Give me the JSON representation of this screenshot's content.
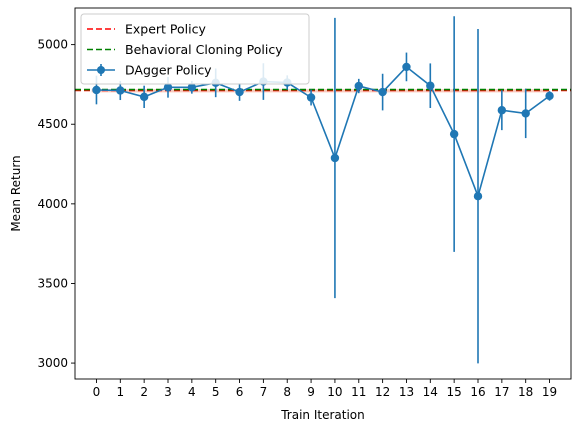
{
  "chart_data": {
    "type": "line",
    "title": "",
    "xlabel": "Train Iteration",
    "ylabel": "Mean Return",
    "xlim": [
      -0.9,
      19.9
    ],
    "ylim": [
      2900,
      5230
    ],
    "x_ticks": [
      0,
      1,
      2,
      3,
      4,
      5,
      6,
      7,
      8,
      9,
      10,
      11,
      12,
      13,
      14,
      15,
      16,
      17,
      18,
      19
    ],
    "y_ticks": [
      3000,
      3500,
      4000,
      4500,
      5000
    ],
    "grid": false,
    "legend_position": "top-left",
    "expert_band": [
      4700,
      4720
    ],
    "series": [
      {
        "name": "Expert Policy",
        "kind": "hline",
        "value": 4712,
        "color": "#ff0000",
        "style": "dashed"
      },
      {
        "name": "Behavioral Cloning Policy",
        "kind": "hline",
        "value": 4718,
        "color": "#008000",
        "style": "dashed"
      },
      {
        "name": "DAgger Policy",
        "kind": "errorbar",
        "color": "#1f77b4",
        "x": [
          0,
          1,
          2,
          3,
          4,
          5,
          6,
          7,
          8,
          9,
          10,
          11,
          12,
          13,
          14,
          15,
          16,
          17,
          18,
          19
        ],
        "y": [
          4715,
          4712,
          4672,
          4732,
          4732,
          4760,
          4702,
          4768,
          4762,
          4668,
          4288,
          4740,
          4702,
          4860,
          4742,
          4438,
          4048,
          4588,
          4568,
          4678
        ],
        "yerr": [
          90,
          60,
          70,
          65,
          40,
          90,
          55,
          115,
          45,
          50,
          880,
          45,
          115,
          90,
          140,
          740,
          1050,
          125,
          155,
          30
        ]
      }
    ]
  }
}
